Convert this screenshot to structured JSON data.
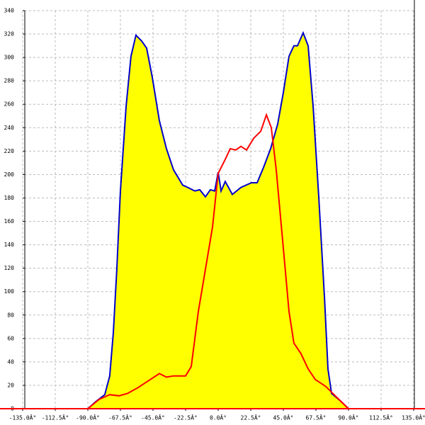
{
  "chart_data": {
    "type": "area-line",
    "xlim": [
      -135,
      135
    ],
    "ylim": [
      0,
      340
    ],
    "xticks": [
      {
        "value": -135,
        "label": "-135.0Â°"
      },
      {
        "value": -112.5,
        "label": "-112.5Â°"
      },
      {
        "value": -90,
        "label": "-90.0Â°"
      },
      {
        "value": -67.5,
        "label": "-67.5Â°"
      },
      {
        "value": -45,
        "label": "-45.0Â°"
      },
      {
        "value": -22.5,
        "label": "-22.5Â°"
      },
      {
        "value": 0,
        "label": "0.0Â°"
      },
      {
        "value": 22.5,
        "label": "22.5Â°"
      },
      {
        "value": 45,
        "label": "45.0Â°"
      },
      {
        "value": 67.5,
        "label": "67.5Â°"
      },
      {
        "value": 90,
        "label": "90.0Â°"
      },
      {
        "value": 112.5,
        "label": "112.5Â°"
      },
      {
        "value": 135,
        "label": "135.0Â°"
      }
    ],
    "yticks": [
      0,
      20,
      40,
      60,
      80,
      100,
      120,
      140,
      160,
      180,
      200,
      220,
      240,
      260,
      280,
      300,
      320,
      340
    ],
    "grid": true,
    "series": [
      {
        "color": "#0000cc",
        "fill": "#ffff00",
        "x": [
          -90,
          -84.6,
          -78.3,
          -74.9,
          -72.4,
          -70,
          -67.5,
          -63.6,
          -60.2,
          -56.8,
          -52.8,
          -49.4,
          -45.5,
          -40.6,
          -35.7,
          -30.8,
          -24.5,
          -21,
          -16.1,
          -12.7,
          -8.8,
          -5.4,
          -2.4,
          0,
          2,
          4.9,
          9.8,
          15.7,
          23,
          26.9,
          31.3,
          36.2,
          41.1,
          45,
          48.9,
          52.3,
          54.8,
          58.7,
          62.1,
          65.6,
          69.5,
          73.4,
          75.8,
          78.3,
          84.1,
          90
        ],
        "values": [
          0,
          6,
          12,
          28,
          65,
          119,
          186,
          258,
          301,
          319,
          314,
          308,
          283,
          246,
          222,
          204,
          191,
          189,
          186,
          187,
          181,
          187,
          186,
          202,
          186,
          194,
          183,
          189,
          193,
          193,
          206,
          222,
          243,
          270,
          301,
          310,
          310,
          321,
          310,
          258,
          180,
          95,
          34,
          13,
          7,
          0
        ]
      },
      {
        "color": "#ff0000",
        "x": [
          -90,
          -82.2,
          -74.9,
          -68.5,
          -62.6,
          -55.3,
          -48,
          -40.6,
          -35.7,
          -30.8,
          -22.5,
          -18.6,
          -13.7,
          -8.8,
          -3.9,
          0,
          4.9,
          8.3,
          12.2,
          15.7,
          19.6,
          24.5,
          29.4,
          33.3,
          36.7,
          40.1,
          45,
          48.9,
          52.3,
          57.2,
          62.1,
          67,
          74.3,
          81.7,
          90
        ],
        "values": [
          0,
          8,
          12,
          11,
          13,
          18,
          24,
          30,
          27,
          28,
          28,
          36,
          83,
          119,
          155,
          201,
          213,
          222,
          221,
          224,
          221,
          231,
          237,
          251,
          240,
          204,
          137,
          83,
          56,
          47,
          34,
          25,
          19,
          10,
          0
        ]
      }
    ]
  }
}
